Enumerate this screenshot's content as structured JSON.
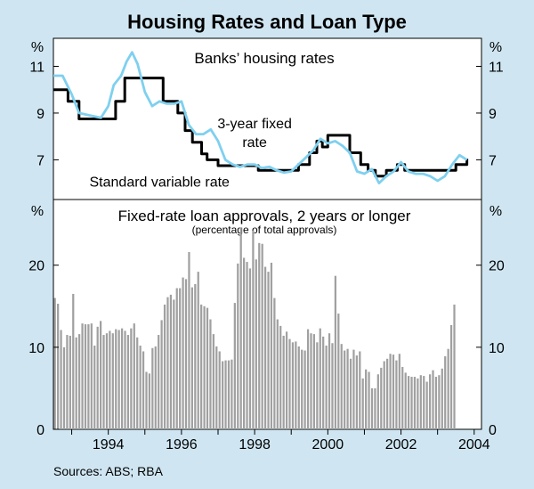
{
  "chart_data": [
    {
      "type": "line",
      "title": "Housing Rates and Loan Type",
      "panel_title": "Banks’ housing rates",
      "unit_left": "%",
      "unit_right": "%",
      "ylim": [
        5.3,
        12.2
      ],
      "yticks": [
        7,
        9,
        11
      ],
      "xlim": [
        1992.5,
        2004.2
      ],
      "series": [
        {
          "name": "Standard variable rate",
          "label": "Standard variable rate",
          "color": "#000000",
          "step": true,
          "x": [
            1992.5,
            1992.9,
            1993.2,
            1993.7,
            1994.2,
            1994.45,
            1995.5,
            1995.9,
            1996.1,
            1996.3,
            1996.55,
            1996.7,
            1997.0,
            1997.8,
            1998.1,
            1998.8,
            1999.2,
            1999.5,
            1999.7,
            1999.85,
            2000.0,
            2000.6,
            2000.9,
            2001.1,
            2001.3,
            2001.6,
            2001.9,
            2002.1,
            2002.4,
            2003.0,
            2003.5,
            2003.8
          ],
          "y": [
            10.0,
            9.5,
            8.75,
            8.75,
            9.5,
            10.5,
            9.5,
            9.0,
            8.25,
            7.75,
            7.25,
            7.0,
            6.75,
            6.75,
            6.55,
            6.55,
            6.8,
            7.3,
            7.8,
            7.55,
            8.05,
            7.3,
            6.8,
            6.55,
            6.3,
            6.55,
            6.8,
            6.55,
            6.55,
            6.55,
            6.8,
            7.05
          ]
        },
        {
          "name": "3-year fixed rate",
          "label": "3-year fixed rate",
          "color": "#7fd0ef",
          "step": false,
          "x": [
            1992.5,
            1992.75,
            1993.0,
            1993.2,
            1993.5,
            1993.8,
            1994.0,
            1994.15,
            1994.35,
            1994.5,
            1994.65,
            1994.8,
            1995.0,
            1995.2,
            1995.4,
            1995.6,
            1995.8,
            1996.0,
            1996.2,
            1996.4,
            1996.6,
            1996.8,
            1997.0,
            1997.2,
            1997.4,
            1997.6,
            1997.8,
            1998.0,
            1998.2,
            1998.4,
            1998.6,
            1998.8,
            1999.0,
            1999.2,
            1999.4,
            1999.6,
            1999.8,
            2000.0,
            2000.2,
            2000.4,
            2000.6,
            2000.8,
            2001.0,
            2001.2,
            2001.4,
            2001.6,
            2001.8,
            2002.0,
            2002.2,
            2002.4,
            2002.6,
            2002.8,
            2003.0,
            2003.2,
            2003.4,
            2003.6,
            2003.8
          ],
          "y": [
            10.6,
            10.6,
            9.8,
            9.0,
            8.9,
            8.8,
            9.3,
            10.2,
            10.6,
            11.2,
            11.6,
            11.1,
            9.9,
            9.3,
            9.5,
            9.4,
            9.4,
            9.5,
            8.5,
            8.1,
            8.1,
            8.3,
            7.8,
            7.0,
            6.8,
            6.7,
            6.8,
            6.8,
            6.65,
            6.7,
            6.55,
            6.45,
            6.5,
            6.8,
            7.1,
            7.4,
            7.9,
            7.7,
            7.8,
            7.6,
            7.3,
            6.5,
            6.4,
            6.6,
            6.0,
            6.3,
            6.5,
            6.9,
            6.5,
            6.4,
            6.4,
            6.3,
            6.1,
            6.3,
            6.8,
            7.2,
            7.0
          ]
        }
      ],
      "annotations": [
        {
          "text": "3-year fixed",
          "at": [
            1998.0,
            8.35
          ]
        },
        {
          "text": "rate",
          "at": [
            1998.0,
            7.55
          ]
        },
        {
          "text": "Standard variable rate",
          "at": [
            1995.4,
            5.85
          ]
        }
      ]
    },
    {
      "type": "bar",
      "title": "Fixed-rate loan approvals, 2 years or longer",
      "subtitle": "(percentage of total approvals)",
      "unit_left": "%",
      "unit_right": "%",
      "ylim": [
        0,
        28
      ],
      "yticks": [
        0,
        10,
        20
      ],
      "xlim": [
        1992.5,
        2004.2
      ],
      "xticks": [
        1994,
        1996,
        1998,
        2000,
        2002,
        2004
      ],
      "x_start": 1992.5,
      "x_step": 0.08333,
      "color": "#a0a0a0",
      "values": [
        16.0,
        15.3,
        12.1,
        10.0,
        11.5,
        11.4,
        16.5,
        11.2,
        11.6,
        12.9,
        12.8,
        12.8,
        12.9,
        10.2,
        12.5,
        13.2,
        11.5,
        11.7,
        12.0,
        11.7,
        12.2,
        12.1,
        12.3,
        12.0,
        11.5,
        12.3,
        12.9,
        11.2,
        10.2,
        9.5,
        7.0,
        6.8,
        9.9,
        10.1,
        11.5,
        13.3,
        15.2,
        16.1,
        16.4,
        15.8,
        17.2,
        17.2,
        18.5,
        18.3,
        21.6,
        17.3,
        17.7,
        19.2,
        15.2,
        15.0,
        14.8,
        13.4,
        11.6,
        10.1,
        9.5,
        8.3,
        8.4,
        8.4,
        8.5,
        15.4,
        20.2,
        24.6,
        20.9,
        20.4,
        19.6,
        24.2,
        20.7,
        22.7,
        22.6,
        19.8,
        19.2,
        20.3,
        16.0,
        13.4,
        12.6,
        11.4,
        11.9,
        11.0,
        10.6,
        10.7,
        10.1,
        9.7,
        9.6,
        12.2,
        11.7,
        11.6,
        10.6,
        12.3,
        11.3,
        10.2,
        11.7,
        10.5,
        18.7,
        14.1,
        10.4,
        9.6,
        9.8,
        8.6,
        9.7,
        9.0,
        9.5,
        6.2,
        7.3,
        7.0,
        5.0,
        5.0,
        6.7,
        7.5,
        8.3,
        8.6,
        9.2,
        9.1,
        8.4,
        9.2,
        7.6,
        6.9,
        6.5,
        6.4,
        6.4,
        6.2,
        6.6,
        6.5,
        5.8,
        6.7,
        7.2,
        6.4,
        6.6,
        7.4,
        8.9,
        9.8,
        12.7,
        15.2
      ]
    }
  ],
  "source": "Sources: ABS; RBA"
}
